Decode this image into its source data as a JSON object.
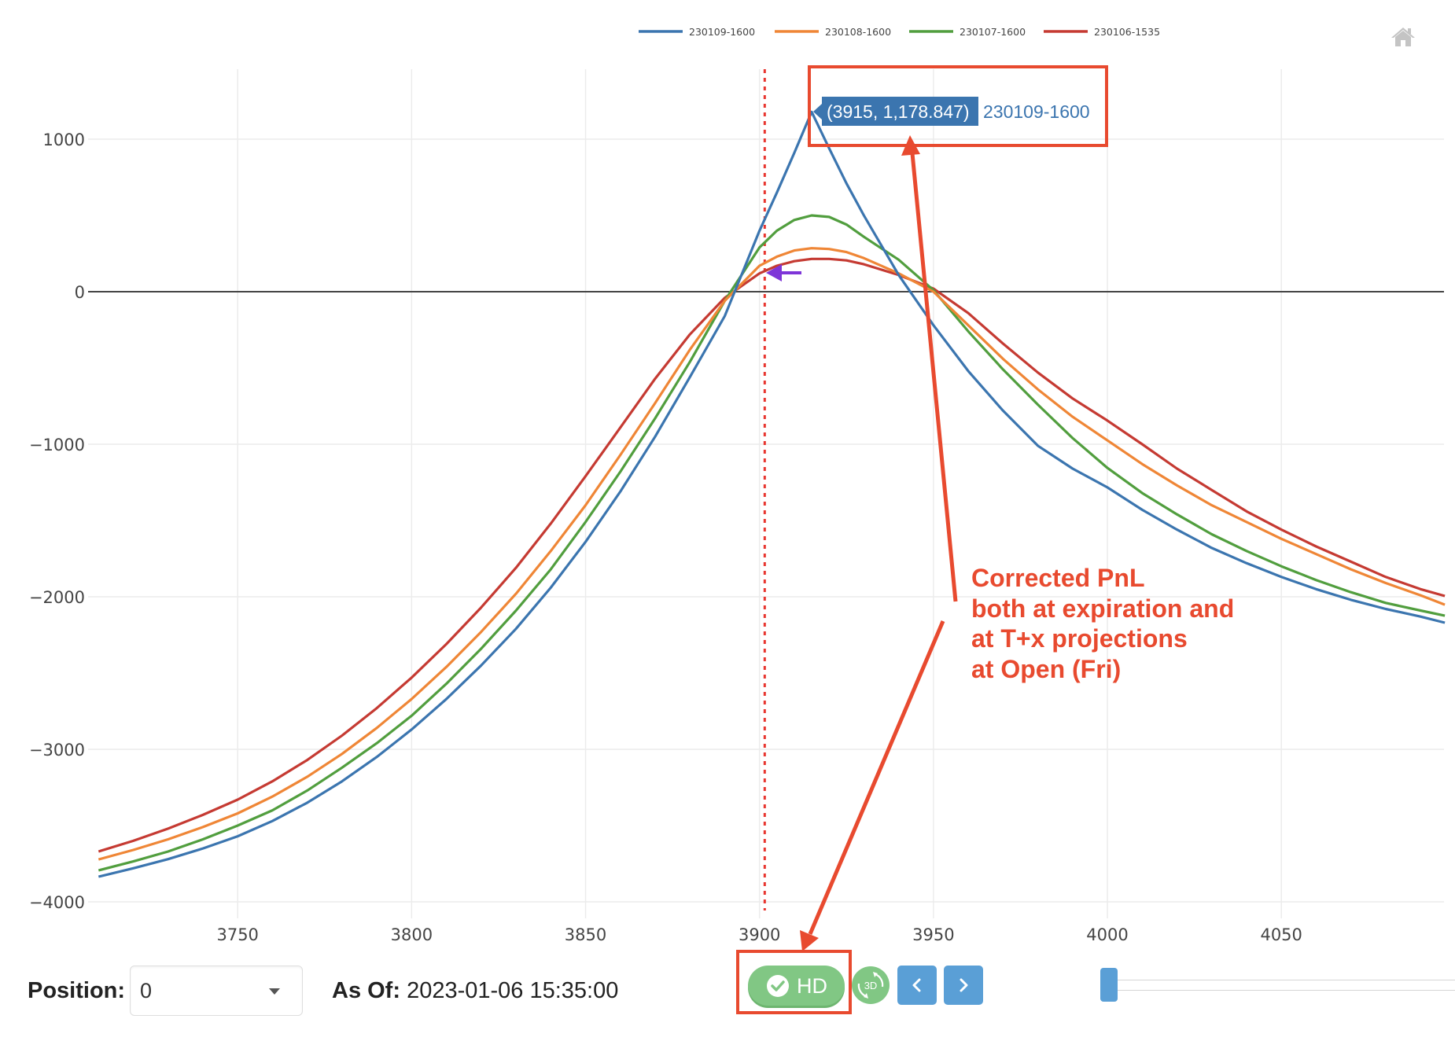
{
  "legend": [
    {
      "label": "230109-1600",
      "color": "#3b75af"
    },
    {
      "label": "230108-1600",
      "color": "#ef8636"
    },
    {
      "label": "230107-1600",
      "color": "#519e3e"
    },
    {
      "label": "230106-1535",
      "color": "#c53a32"
    }
  ],
  "toolbar": {
    "home_icon": "home-icon"
  },
  "tooltip": {
    "coords": "(3915, 1,178.847)",
    "series": "230109-1600",
    "bg": "#3b75af"
  },
  "annotation": {
    "lines": [
      "Corrected PnL",
      "both at expiration and",
      "at T+x projections",
      "at Open (Fri)"
    ],
    "color": "#e84a2f"
  },
  "marker_line": {
    "x": 3901.5,
    "color": "#e8362f"
  },
  "controls": {
    "position_label": "Position:",
    "position_value": "0",
    "asof_label": "As Of:",
    "asof_value": "2023-01-06 15:35:00",
    "hd_label": "HD",
    "btn_3d_label": "3D",
    "prev_icon": "chevron-left-icon",
    "next_icon": "chevron-right-icon"
  },
  "chart_data": {
    "type": "line",
    "title": "",
    "xlabel": "",
    "ylabel": "",
    "xlim": [
      3707,
      4097
    ],
    "ylim": [
      -4200,
      1459
    ],
    "grid": true,
    "legend_position": "top",
    "x_ticks": [
      3750,
      3800,
      3850,
      3900,
      3950,
      4000,
      4050
    ],
    "y_ticks": [
      1000,
      0,
      -1000,
      -2000,
      -3000,
      -4000
    ],
    "y_tick_labels": [
      "1000",
      "0",
      "−1000",
      "−2000",
      "−3000",
      "−4000"
    ],
    "x": [
      3710,
      3720,
      3730,
      3740,
      3750,
      3760,
      3770,
      3780,
      3790,
      3800,
      3810,
      3820,
      3830,
      3840,
      3850,
      3860,
      3870,
      3880,
      3890,
      3900,
      3905,
      3910,
      3915,
      3920,
      3925,
      3930,
      3940,
      3950,
      3960,
      3970,
      3980,
      3990,
      4000,
      4010,
      4020,
      4030,
      4040,
      4050,
      4060,
      4070,
      4080,
      4090,
      4097
    ],
    "series": [
      {
        "name": "230109-1600",
        "color": "#3b75af",
        "values": [
          -3835,
          -3780,
          -3720,
          -3650,
          -3570,
          -3470,
          -3350,
          -3210,
          -3050,
          -2870,
          -2670,
          -2450,
          -2210,
          -1940,
          -1640,
          -1310,
          -950,
          -560,
          -160,
          400,
          650,
          910,
          1179,
          940,
          710,
          500,
          110,
          -220,
          -520,
          -780,
          -1010,
          -1160,
          -1283,
          -1430,
          -1560,
          -1680,
          -1780,
          -1870,
          -1950,
          -2020,
          -2080,
          -2130,
          -2170
        ]
      },
      {
        "name": "230108-1600",
        "color": "#ef8636",
        "values": [
          -3722,
          -3660,
          -3590,
          -3510,
          -3420,
          -3310,
          -3180,
          -3030,
          -2860,
          -2670,
          -2460,
          -2230,
          -1980,
          -1700,
          -1400,
          -1070,
          -730,
          -380,
          -60,
          170,
          230,
          270,
          285,
          280,
          260,
          220,
          120,
          0,
          -220,
          -440,
          -640,
          -820,
          -975,
          -1130,
          -1270,
          -1400,
          -1510,
          -1620,
          -1720,
          -1820,
          -1910,
          -1990,
          -2052
        ]
      },
      {
        "name": "230107-1600",
        "color": "#519e3e",
        "values": [
          -3794,
          -3735,
          -3670,
          -3590,
          -3500,
          -3400,
          -3270,
          -3120,
          -2960,
          -2780,
          -2570,
          -2340,
          -2090,
          -1820,
          -1510,
          -1180,
          -830,
          -460,
          -60,
          290,
          400,
          470,
          500,
          490,
          440,
          360,
          210,
          10,
          -260,
          -510,
          -740,
          -960,
          -1155,
          -1320,
          -1460,
          -1590,
          -1700,
          -1800,
          -1890,
          -1970,
          -2040,
          -2090,
          -2124
        ]
      },
      {
        "name": "230106-1535",
        "color": "#c53a32",
        "values": [
          -3670,
          -3600,
          -3520,
          -3430,
          -3330,
          -3210,
          -3070,
          -2910,
          -2730,
          -2530,
          -2310,
          -2070,
          -1810,
          -1520,
          -1210,
          -890,
          -570,
          -280,
          -40,
          120,
          170,
          200,
          215,
          215,
          205,
          180,
          110,
          20,
          -140,
          -340,
          -530,
          -700,
          -845,
          -1000,
          -1160,
          -1300,
          -1440,
          -1560,
          -1670,
          -1770,
          -1870,
          -1950,
          -1995
        ]
      }
    ],
    "hover_point": {
      "x": 3915,
      "y": 1178.847,
      "series": "230109-1600"
    }
  }
}
